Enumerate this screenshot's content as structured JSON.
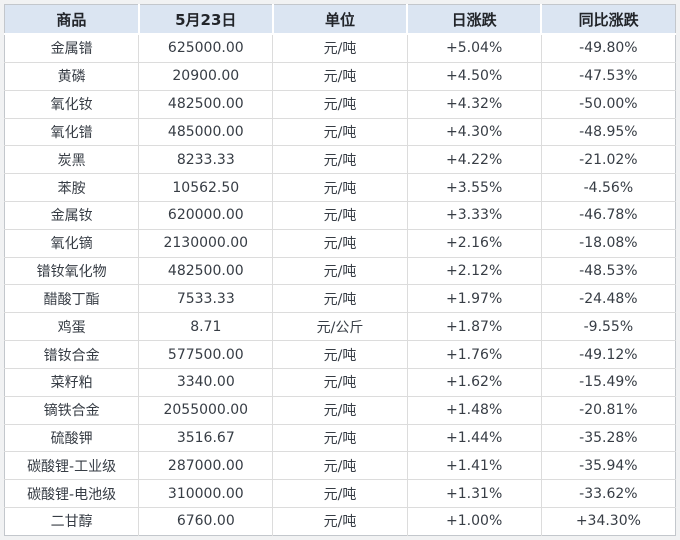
{
  "chart_data": {
    "type": "table",
    "columns": [
      "商品",
      "5月23日",
      "单位",
      "日涨跌",
      "同比涨跌"
    ],
    "rows": [
      [
        "金属镨",
        "625000.00",
        "元/吨",
        "+5.04%",
        "-49.80%"
      ],
      [
        "黄磷",
        "20900.00",
        "元/吨",
        "+4.50%",
        "-47.53%"
      ],
      [
        "氧化钕",
        "482500.00",
        "元/吨",
        "+4.32%",
        "-50.00%"
      ],
      [
        "氧化镨",
        "485000.00",
        "元/吨",
        "+4.30%",
        "-48.95%"
      ],
      [
        "炭黑",
        "8233.33",
        "元/吨",
        "+4.22%",
        "-21.02%"
      ],
      [
        "苯胺",
        "10562.50",
        "元/吨",
        "+3.55%",
        "-4.56%"
      ],
      [
        "金属钕",
        "620000.00",
        "元/吨",
        "+3.33%",
        "-46.78%"
      ],
      [
        "氧化镝",
        "2130000.00",
        "元/吨",
        "+2.16%",
        "-18.08%"
      ],
      [
        "镨钕氧化物",
        "482500.00",
        "元/吨",
        "+2.12%",
        "-48.53%"
      ],
      [
        "醋酸丁酯",
        "7533.33",
        "元/吨",
        "+1.97%",
        "-24.48%"
      ],
      [
        "鸡蛋",
        "8.71",
        "元/公斤",
        "+1.87%",
        "-9.55%"
      ],
      [
        "镨钕合金",
        "577500.00",
        "元/吨",
        "+1.76%",
        "-49.12%"
      ],
      [
        "菜籽粕",
        "3340.00",
        "元/吨",
        "+1.62%",
        "-15.49%"
      ],
      [
        "镝铁合金",
        "2055000.00",
        "元/吨",
        "+1.48%",
        "-20.81%"
      ],
      [
        "硫酸钾",
        "3516.67",
        "元/吨",
        "+1.44%",
        "-35.28%"
      ],
      [
        "碳酸锂-工业级",
        "287000.00",
        "元/吨",
        "+1.41%",
        "-35.94%"
      ],
      [
        "碳酸锂-电池级",
        "310000.00",
        "元/吨",
        "+1.31%",
        "-33.62%"
      ],
      [
        "二甘醇",
        "6760.00",
        "元/吨",
        "+1.00%",
        "+34.30%"
      ]
    ]
  },
  "colors": {
    "positive_red": "#e60012",
    "negative_green": "#17883b",
    "header_background": "#dbe5f2"
  }
}
